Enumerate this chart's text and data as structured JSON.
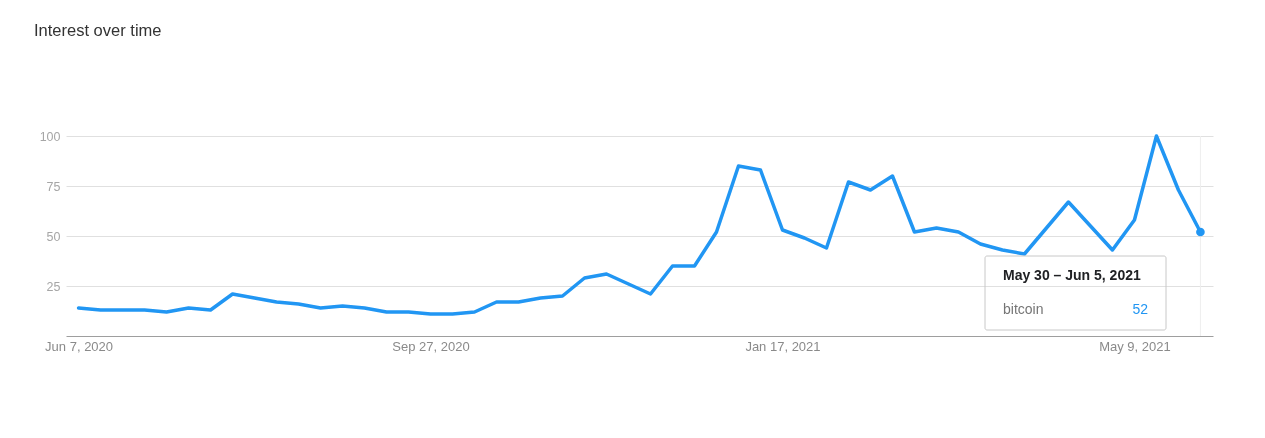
{
  "chart_data": {
    "type": "line",
    "title": "Interest over time",
    "x": [
      "2020-06-07",
      "2020-06-14",
      "2020-06-21",
      "2020-06-28",
      "2020-07-05",
      "2020-07-12",
      "2020-07-19",
      "2020-07-26",
      "2020-08-02",
      "2020-08-09",
      "2020-08-16",
      "2020-08-23",
      "2020-08-30",
      "2020-09-06",
      "2020-09-13",
      "2020-09-20",
      "2020-09-27",
      "2020-10-04",
      "2020-10-11",
      "2020-10-18",
      "2020-10-25",
      "2020-11-01",
      "2020-11-08",
      "2020-11-15",
      "2020-11-22",
      "2020-11-29",
      "2020-12-06",
      "2020-12-13",
      "2020-12-20",
      "2020-12-27",
      "2021-01-03",
      "2021-01-10",
      "2021-01-17",
      "2021-01-24",
      "2021-01-31",
      "2021-02-07",
      "2021-02-14",
      "2021-02-21",
      "2021-02-28",
      "2021-03-07",
      "2021-03-14",
      "2021-03-21",
      "2021-03-28",
      "2021-04-04",
      "2021-04-11",
      "2021-04-18",
      "2021-04-25",
      "2021-05-02",
      "2021-05-09",
      "2021-05-16",
      "2021-05-23",
      "2021-05-30"
    ],
    "series": [
      {
        "name": "bitcoin",
        "color": "#2196f3",
        "values": [
          14,
          13,
          13,
          13,
          12,
          14,
          13,
          21,
          19,
          17,
          16,
          14,
          15,
          14,
          12,
          12,
          11,
          11,
          12,
          17,
          17,
          19,
          20,
          29,
          31,
          26,
          21,
          35,
          35,
          52,
          85,
          83,
          53,
          49,
          44,
          77,
          73,
          80,
          52,
          54,
          52,
          46,
          43,
          41,
          54,
          67,
          55,
          43,
          58,
          100,
          73,
          52
        ]
      }
    ],
    "xlim": [
      "2020-06-03",
      "2021-06-03"
    ],
    "xticks": [
      {
        "value": "2020-06-07",
        "label": "Jun 7, 2020"
      },
      {
        "value": "2020-09-27",
        "label": "Sep 27, 2020"
      },
      {
        "value": "2021-01-17",
        "label": "Jan 17, 2021"
      },
      {
        "value": "2021-05-09",
        "label": "May 9, 2021"
      }
    ],
    "ylim": [
      0,
      100
    ],
    "yticks": [
      25,
      50,
      75,
      100
    ],
    "grid": "y",
    "line_style": "solid",
    "ref_lines": [
      {
        "axis": "x",
        "value": "2021-05-30",
        "color": "#eeeeee"
      }
    ],
    "annotations": [
      "May 30 – Jun 5, 2021",
      "52"
    ]
  }
}
